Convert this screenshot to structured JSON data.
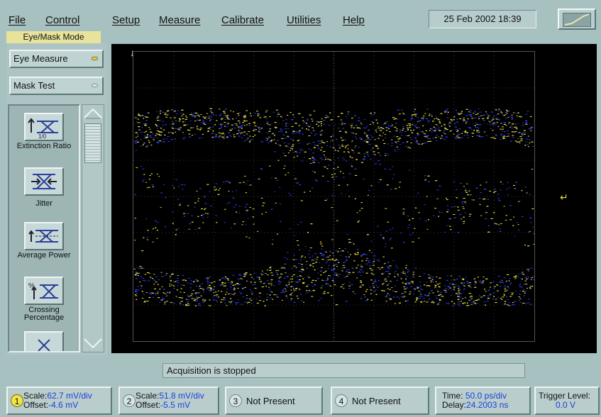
{
  "menu": [
    "File",
    "Control",
    "Setup",
    "Measure",
    "Calibrate",
    "Utilities",
    "Help"
  ],
  "datetime": "25 Feb 2002  18:39",
  "mode_label": "Eye/Mask Mode",
  "mode_buttons": [
    {
      "label": "Eye Measure",
      "active": true
    },
    {
      "label": "Mask Test",
      "active": false
    }
  ],
  "measurements": [
    {
      "label": "Extinction Ratio",
      "icon": "extinction-ratio-icon",
      "sub": "1/0"
    },
    {
      "label": "Jitter",
      "icon": "jitter-icon"
    },
    {
      "label": "Average Power",
      "icon": "average-power-icon"
    },
    {
      "label": "Crossing Percentage",
      "icon": "crossing-percentage-icon"
    }
  ],
  "status": "Acquisition is stopped",
  "channels": [
    {
      "num": "1",
      "scale_label": "Scale:",
      "scale": "62.7 mV/div",
      "offset_label": "Offset:",
      "offset": "-4.6 mV"
    },
    {
      "num": "2",
      "scale_label": "Scale:",
      "scale": "51.8 mV/div",
      "offset_label": "Offset:",
      "offset": "-5.5 mV"
    },
    {
      "num": "3",
      "text": "Not Present"
    },
    {
      "num": "4",
      "text": "Not Present"
    }
  ],
  "timebase": {
    "time_label": "Time:",
    "time": "50.0 ps/div",
    "delay_label": "Delay:",
    "delay": "24.2003 ns"
  },
  "trigger": {
    "label": "Trigger Level:",
    "value": "0.0 V"
  },
  "colors": {
    "trace_yellow": "#e6dc3a",
    "trace_blue": "#2a3de0",
    "display_bg": "#000000",
    "panel": "#a7c0c0"
  }
}
